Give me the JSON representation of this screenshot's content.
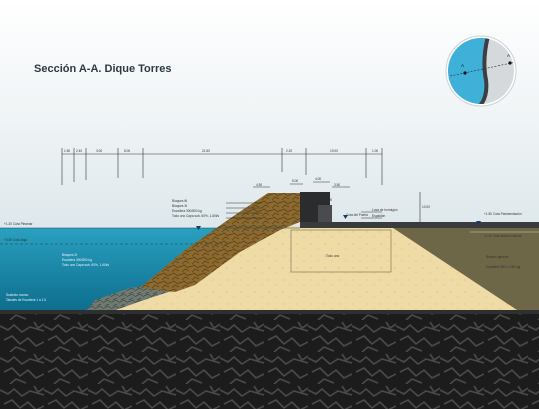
{
  "title": {
    "bold": "Sección A-A.",
    "regular": "Dique Torres"
  },
  "inset_map": {
    "marker_labels": [
      "A",
      "A"
    ]
  },
  "dimension_labels": [
    "1.50",
    "2.40",
    "3.00",
    "8.00",
    "21.50",
    "2.20",
    "19.00",
    "1.00"
  ],
  "level_labels": [
    "4.50",
    "5.00",
    "4.00",
    "3.50",
    "4.00",
    "10.00",
    "+1.20 Cota Pleamar",
    "+0.50 Cota Baja",
    "Cota del Puerto",
    "+1.50 Cota Pavimentación",
    "+1.00 Cota terreno natural"
  ],
  "component_labels": {
    "armour": [
      "Bloques 6t",
      "Bloques 3t",
      "Escollera 300/800 kg",
      "Todo uno Capa sub. 60%, 1.60t/s"
    ],
    "toe": [
      "Bloques 2t",
      "Escollera 300/800 kg",
      "Todo uno Capa sub. 60%, 1.60t/s"
    ],
    "crown": [
      "Losa de hormigón",
      "Espaldón"
    ],
    "core": "Todo uno",
    "fill": [
      "Relleno general",
      "Escollera 300 / 1.000 kg"
    ],
    "seabed": [
      "Sustrato rocoso",
      "Taludes de Escollera 1 a 1.5"
    ]
  },
  "colors": {
    "sea": "#1f8fb0",
    "sand_core": "#eedba6",
    "rock_armour": "#8d6a2f",
    "backfill": "#6e6747",
    "pavement": "#3a3b3d",
    "seabed": "#2a2a2a",
    "sky": "#e7eef1"
  }
}
